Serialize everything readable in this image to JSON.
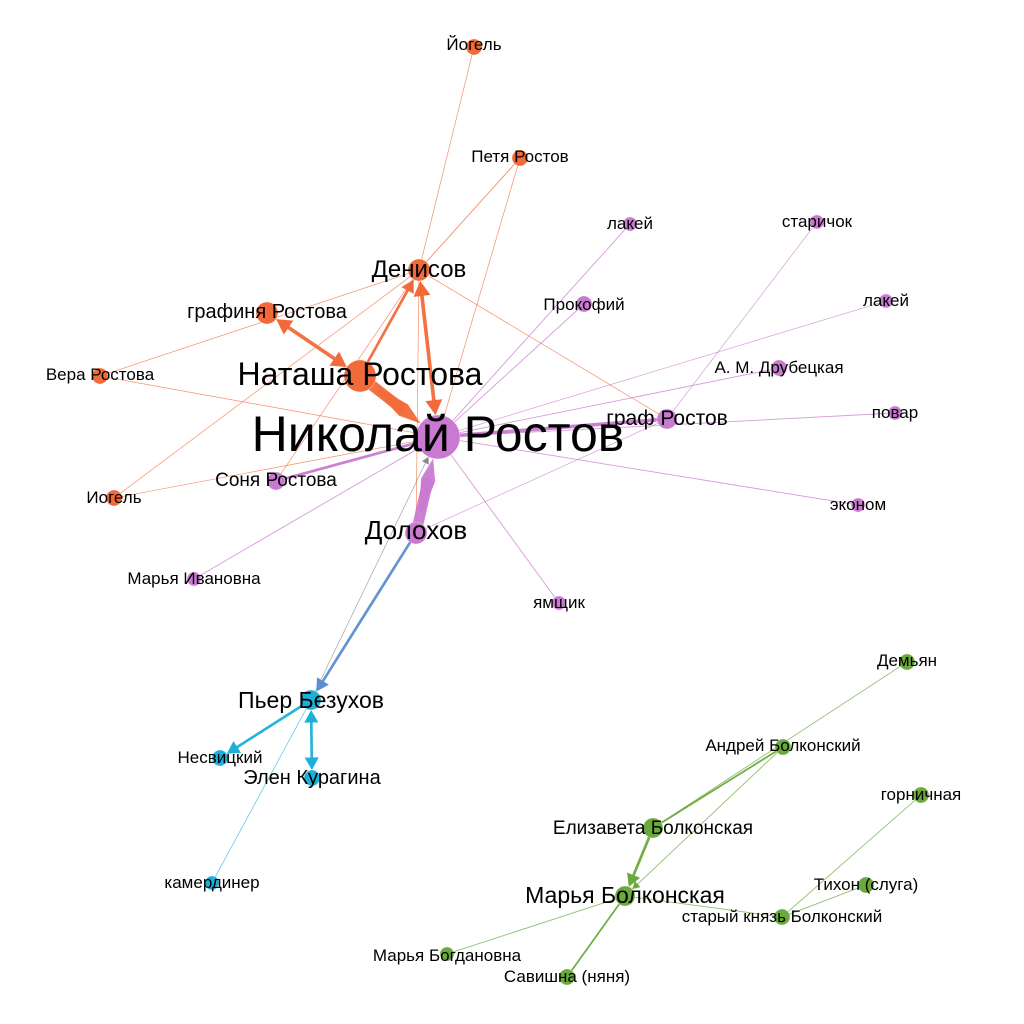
{
  "colors": {
    "rostov_family": "#f26a3a",
    "rostov_household": "#c97ad0",
    "bezukhov": "#1bb0d9",
    "bolkonsky": "#6aaa3c",
    "edge_dolokhov_pierre": "#5b8fd0",
    "edge_grey": "#888888"
  },
  "nodes": [
    {
      "id": "iogel_top",
      "label": "Йогель",
      "group": "rostov_family"
    },
    {
      "id": "petya",
      "label": "Петя Ростов",
      "group": "rostov_family"
    },
    {
      "id": "denisov",
      "label": "Денисов",
      "group": "rostov_family"
    },
    {
      "id": "grafinya",
      "label": "графиня Ростова",
      "group": "rostov_family"
    },
    {
      "id": "natasha",
      "label": "Наташа Ростова",
      "group": "rostov_family"
    },
    {
      "id": "vera",
      "label": "Вера Ростова",
      "group": "rostov_family"
    },
    {
      "id": "iogel_bottom",
      "label": "Иогель",
      "group": "rostov_family"
    },
    {
      "id": "nikolai",
      "label": "Николай Ростов",
      "group": "rostov_household"
    },
    {
      "id": "sonya",
      "label": "Соня Ростова",
      "group": "rostov_household"
    },
    {
      "id": "dolokhov",
      "label": "Долохов",
      "group": "rostov_household"
    },
    {
      "id": "marya_iv",
      "label": "Марья Ивановна",
      "group": "rostov_household"
    },
    {
      "id": "yamshchik",
      "label": "ямщик",
      "group": "rostov_household"
    },
    {
      "id": "lakei1",
      "label": "лакей",
      "group": "rostov_household"
    },
    {
      "id": "prokofiy",
      "label": "Прокофий",
      "group": "rostov_household"
    },
    {
      "id": "starichok",
      "label": "старичок",
      "group": "rostov_household"
    },
    {
      "id": "lakei2",
      "label": "лакей",
      "group": "rostov_household"
    },
    {
      "id": "drubetskaya",
      "label": "А. М. Друбецкая",
      "group": "rostov_household"
    },
    {
      "id": "graf",
      "label": "граф Ростов",
      "group": "rostov_household"
    },
    {
      "id": "povar",
      "label": "повар",
      "group": "rostov_household"
    },
    {
      "id": "ekonom",
      "label": "эконом",
      "group": "rostov_household"
    },
    {
      "id": "pierre",
      "label": "Пьер Безухов",
      "group": "bezukhov"
    },
    {
      "id": "nesvitsky",
      "label": "Несвицкий",
      "group": "bezukhov"
    },
    {
      "id": "elen",
      "label": "Элен Курагина",
      "group": "bezukhov"
    },
    {
      "id": "kamerdiner",
      "label": "камердинер",
      "group": "bezukhov"
    },
    {
      "id": "demyan",
      "label": "Демьян",
      "group": "bolkonsky"
    },
    {
      "id": "andrei",
      "label": "Андрей Болконский",
      "group": "bolkonsky"
    },
    {
      "id": "gornichnaya",
      "label": "горничная",
      "group": "bolkonsky"
    },
    {
      "id": "elizaveta",
      "label": "Елизавета Болконская",
      "group": "bolkonsky"
    },
    {
      "id": "tikhon",
      "label": "Тихон (слуга)",
      "group": "bolkonsky"
    },
    {
      "id": "marya_b",
      "label": "Марья Болконская",
      "group": "bolkonsky"
    },
    {
      "id": "stariy_knyaz",
      "label": "старый князь Болконский",
      "group": "bolkonsky"
    },
    {
      "id": "marya_bogd",
      "label": "Марья Богдановна",
      "group": "bolkonsky"
    },
    {
      "id": "savishna",
      "label": "Савишна (няня)",
      "group": "bolkonsky"
    }
  ],
  "edges": [
    {
      "source": "natasha",
      "target": "nikolai",
      "weight": 12,
      "arrow": "end",
      "color": "rostov_family"
    },
    {
      "source": "dolokhov",
      "target": "nikolai",
      "weight": 12,
      "arrow": "end",
      "color": "rostov_household"
    },
    {
      "source": "denisov",
      "target": "nikolai",
      "weight": 4,
      "arrow": "both",
      "color": "rostov_family"
    },
    {
      "source": "grafinya",
      "target": "natasha",
      "weight": 4,
      "arrow": "both",
      "color": "rostov_family"
    },
    {
      "source": "natasha",
      "target": "denisov",
      "weight": 3,
      "arrow": "end",
      "color": "rostov_family"
    },
    {
      "source": "nikolai",
      "target": "graf",
      "weight": 4,
      "arrow": "none",
      "color": "rostov_household"
    },
    {
      "source": "nikolai",
      "target": "sonya",
      "weight": 3,
      "arrow": "none",
      "color": "rostov_household"
    },
    {
      "source": "dolokhov",
      "target": "pierre",
      "weight": 3,
      "arrow": "end",
      "color": "edge_dolokhov_pierre"
    },
    {
      "source": "pierre",
      "target": "nesvitsky",
      "weight": 3,
      "arrow": "end",
      "color": "bezukhov"
    },
    {
      "source": "pierre",
      "target": "elen",
      "weight": 3,
      "arrow": "both",
      "color": "bezukhov"
    },
    {
      "source": "elizaveta",
      "target": "marya_b",
      "weight": 3,
      "arrow": "end",
      "color": "bolkonsky"
    },
    {
      "source": "andrei",
      "target": "elizaveta",
      "weight": 2,
      "arrow": "none",
      "color": "bolkonsky"
    },
    {
      "source": "marya_b",
      "target": "savishna",
      "weight": 2,
      "arrow": "none",
      "color": "bolkonsky"
    },
    {
      "source": "andrei",
      "target": "marya_b",
      "weight": 1,
      "arrow": "end",
      "color": "bolkonsky"
    },
    {
      "source": "demyan",
      "target": "elizaveta",
      "weight": 1,
      "arrow": "none",
      "color": "bolkonsky"
    },
    {
      "source": "gornichnaya",
      "target": "stariy_knyaz",
      "weight": 1,
      "arrow": "none",
      "color": "bolkonsky"
    },
    {
      "source": "marya_b",
      "target": "stariy_knyaz",
      "weight": 1,
      "arrow": "none",
      "color": "bolkonsky"
    },
    {
      "source": "marya_b",
      "target": "marya_bogd",
      "weight": 1,
      "arrow": "none",
      "color": "bolkonsky"
    },
    {
      "source": "tikhon",
      "target": "stariy_knyaz",
      "weight": 1,
      "arrow": "none",
      "color": "bolkonsky"
    },
    {
      "source": "pierre",
      "target": "kamerdiner",
      "weight": 0.6,
      "arrow": "none",
      "color": "bezukhov"
    },
    {
      "source": "pierre",
      "target": "nikolai",
      "weight": 0.8,
      "arrow": "end",
      "color": "edge_grey"
    },
    {
      "source": "nikolai",
      "target": "lakei1",
      "weight": 1,
      "arrow": "none",
      "color": "rostov_household"
    },
    {
      "source": "nikolai",
      "target": "prokofiy",
      "weight": 1,
      "arrow": "none",
      "color": "rostov_household"
    },
    {
      "source": "graf",
      "target": "starichok",
      "weight": 0.6,
      "arrow": "none",
      "color": "rostov_household"
    },
    {
      "source": "nikolai",
      "target": "lakei2",
      "weight": 0.6,
      "arrow": "none",
      "color": "rostov_household"
    },
    {
      "source": "nikolai",
      "target": "drubetskaya",
      "weight": 1,
      "arrow": "none",
      "color": "rostov_household"
    },
    {
      "source": "nikolai",
      "target": "povar",
      "weight": 1,
      "arrow": "none",
      "color": "rostov_household"
    },
    {
      "source": "nikolai",
      "target": "ekonom",
      "weight": 1,
      "arrow": "none",
      "color": "rostov_household"
    },
    {
      "source": "nikolai",
      "target": "yamshchik",
      "weight": 1,
      "arrow": "none",
      "color": "rostov_household"
    },
    {
      "source": "nikolai",
      "target": "marya_iv",
      "weight": 1,
      "arrow": "none",
      "color": "rostov_household"
    },
    {
      "source": "dolokhov",
      "target": "graf",
      "weight": 0.6,
      "arrow": "none",
      "color": "rostov_household"
    },
    {
      "source": "iogel_top",
      "target": "denisov",
      "weight": 0.6,
      "arrow": "none",
      "color": "rostov_family"
    },
    {
      "source": "petya",
      "target": "denisov",
      "weight": 1,
      "arrow": "none",
      "color": "rostov_family"
    },
    {
      "source": "petya",
      "target": "nikolai",
      "weight": 0.6,
      "arrow": "none",
      "color": "rostov_family"
    },
    {
      "source": "denisov",
      "target": "vera",
      "weight": 0.6,
      "arrow": "none",
      "color": "rostov_family"
    },
    {
      "source": "denisov",
      "target": "graf",
      "weight": 0.6,
      "arrow": "none",
      "color": "rostov_family"
    },
    {
      "source": "denisov",
      "target": "iogel_bottom",
      "weight": 0.6,
      "arrow": "none",
      "color": "rostov_family"
    },
    {
      "source": "denisov",
      "target": "sonya",
      "weight": 0.6,
      "arrow": "none",
      "color": "rostov_family"
    },
    {
      "source": "denisov",
      "target": "dolokhov",
      "weight": 0.6,
      "arrow": "none",
      "color": "rostov_family"
    },
    {
      "source": "vera",
      "target": "nikolai",
      "weight": 0.6,
      "arrow": "none",
      "color": "rostov_family"
    },
    {
      "source": "iogel_bottom",
      "target": "nikolai",
      "weight": 0.6,
      "arrow": "none",
      "color": "rostov_family"
    }
  ]
}
